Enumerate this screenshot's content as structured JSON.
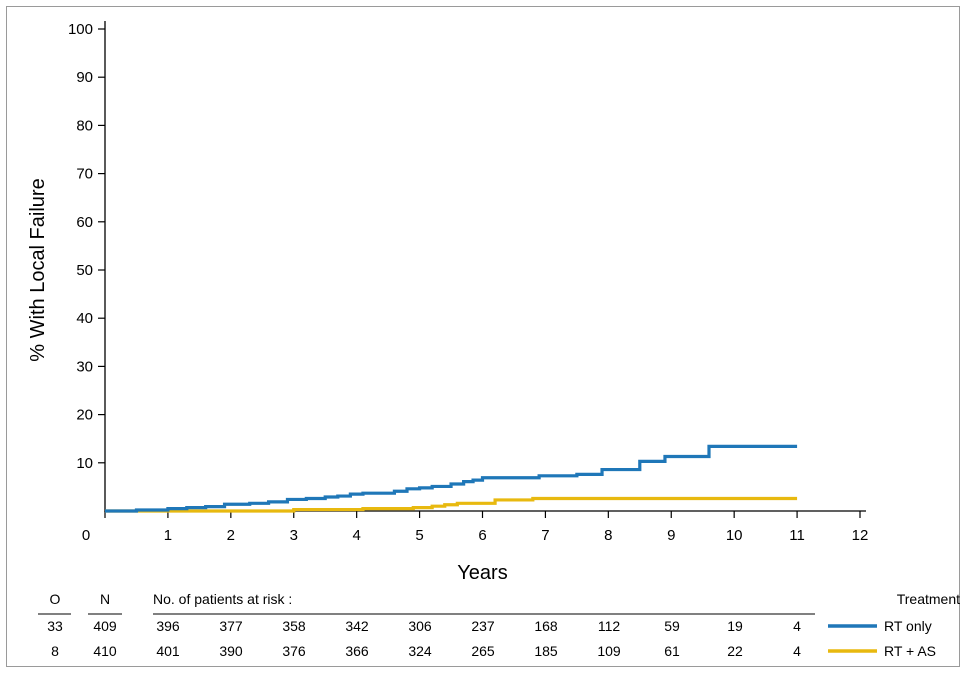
{
  "chart_data": {
    "type": "line",
    "step": true,
    "xlabel": "Years",
    "ylabel": "% With Local Failure",
    "xlim": [
      0,
      12
    ],
    "ylim": [
      0,
      100
    ],
    "x_ticks": [
      "0",
      "1",
      "2",
      "3",
      "4",
      "5",
      "6",
      "7",
      "8",
      "9",
      "10",
      "11",
      "12"
    ],
    "y_ticks": [
      "10",
      "20",
      "30",
      "40",
      "50",
      "60",
      "70",
      "80",
      "90",
      "100"
    ],
    "series": [
      {
        "name": "RT only",
        "color": "#1f77b8",
        "points": [
          [
            0,
            0
          ],
          [
            0.5,
            0.2
          ],
          [
            1.0,
            0.5
          ],
          [
            1.3,
            0.7
          ],
          [
            1.6,
            0.9
          ],
          [
            1.9,
            1.4
          ],
          [
            2.3,
            1.6
          ],
          [
            2.6,
            1.9
          ],
          [
            2.9,
            2.4
          ],
          [
            3.2,
            2.6
          ],
          [
            3.5,
            2.9
          ],
          [
            3.7,
            3.1
          ],
          [
            3.9,
            3.5
          ],
          [
            4.1,
            3.7
          ],
          [
            4.6,
            4.1
          ],
          [
            4.8,
            4.6
          ],
          [
            5.0,
            4.8
          ],
          [
            5.2,
            5.1
          ],
          [
            5.5,
            5.6
          ],
          [
            5.7,
            6.1
          ],
          [
            5.85,
            6.4
          ],
          [
            6.0,
            6.9
          ],
          [
            6.6,
            6.9
          ],
          [
            6.9,
            7.3
          ],
          [
            7.5,
            7.6
          ],
          [
            7.9,
            8.6
          ],
          [
            8.5,
            10.3
          ],
          [
            8.9,
            11.3
          ],
          [
            9.6,
            13.4
          ],
          [
            11,
            13.4
          ]
        ]
      },
      {
        "name": "RT + AS",
        "color": "#e8b90f",
        "points": [
          [
            0,
            0
          ],
          [
            3.0,
            0.3
          ],
          [
            4.1,
            0.5
          ],
          [
            4.9,
            0.7
          ],
          [
            5.2,
            1.0
          ],
          [
            5.4,
            1.3
          ],
          [
            5.6,
            1.6
          ],
          [
            6.2,
            2.3
          ],
          [
            6.8,
            2.6
          ],
          [
            11,
            2.6
          ]
        ]
      }
    ],
    "risk_table": {
      "header_o": "O",
      "header_n": "N",
      "title": "No. of patients at risk :",
      "treatment_header": "Treatment",
      "rows": [
        {
          "o": "33",
          "n": "409",
          "counts": [
            "396",
            "377",
            "358",
            "342",
            "306",
            "237",
            "168",
            "112",
            "59",
            "19",
            "4"
          ],
          "label": "RT only",
          "color": "#1f77b8"
        },
        {
          "o": "8",
          "n": "410",
          "counts": [
            "401",
            "390",
            "376",
            "366",
            "324",
            "265",
            "185",
            "109",
            "61",
            "22",
            "4"
          ],
          "label": "RT + AS",
          "color": "#e8b90f"
        }
      ]
    }
  }
}
